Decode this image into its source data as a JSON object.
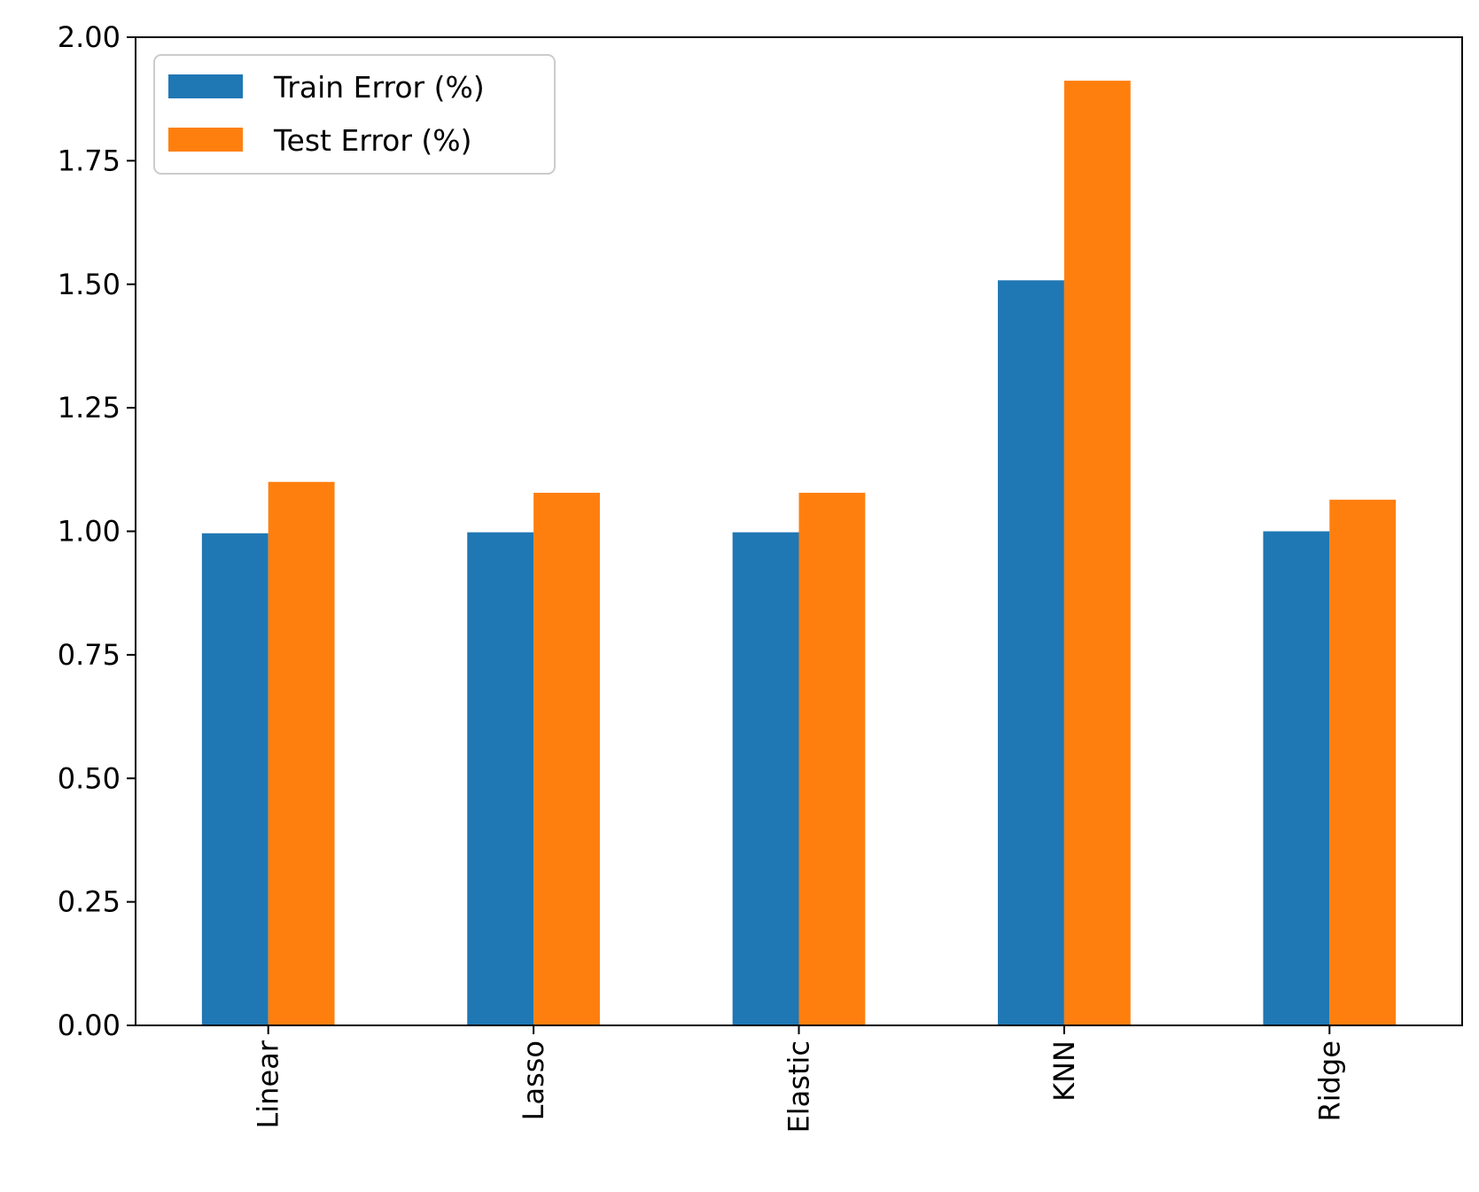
{
  "chart_data": {
    "type": "bar",
    "title": "",
    "xlabel": "",
    "ylabel": "",
    "categories": [
      "Linear",
      "Lasso",
      "Elastic",
      "KNN",
      "Ridge"
    ],
    "series": [
      {
        "name": "Train Error (%)",
        "color": "#1f77b4",
        "values": [
          0.996,
          0.998,
          0.998,
          1.508,
          1.0
        ]
      },
      {
        "name": "Test Error (%)",
        "color": "#ff7f0e",
        "values": [
          1.1,
          1.078,
          1.078,
          1.912,
          1.064
        ]
      }
    ],
    "ylim": [
      0,
      2.0
    ],
    "yticks": [
      "0.00",
      "0.25",
      "0.50",
      "0.75",
      "1.00",
      "1.25",
      "1.50",
      "1.75",
      "2.00"
    ],
    "grid": false,
    "legend_position": "top-left",
    "x_tick_rotation": "vertical"
  }
}
